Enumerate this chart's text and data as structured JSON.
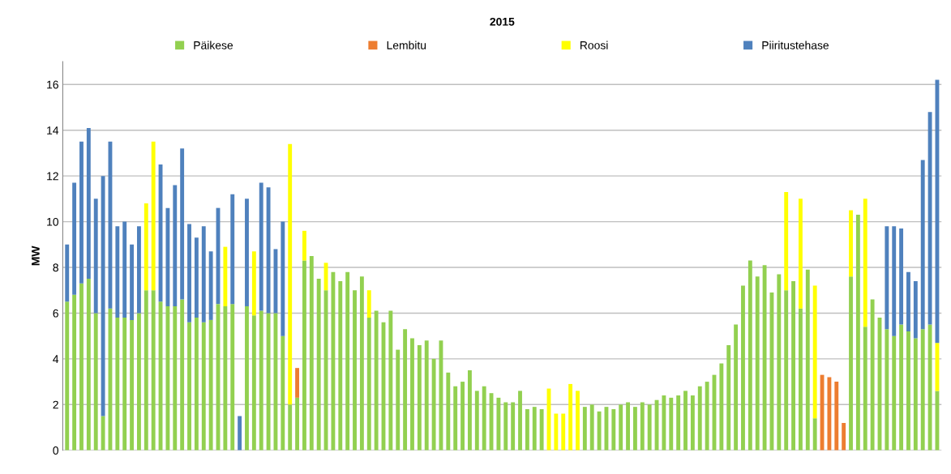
{
  "chart_data": {
    "type": "bar",
    "title": "2015",
    "ylabel": "MW",
    "stacked": true,
    "categories": [
      null,
      null,
      null,
      null,
      null,
      null,
      null,
      null,
      null,
      null,
      null,
      null,
      null,
      null,
      null,
      null,
      null,
      null,
      null,
      null,
      null,
      null,
      null,
      null,
      null,
      null,
      null,
      null,
      null,
      null,
      null,
      null,
      null,
      null,
      null,
      null,
      null,
      null,
      null,
      null,
      null,
      null,
      null,
      null,
      null,
      null,
      null,
      null,
      null,
      null,
      null,
      null,
      null,
      null,
      null,
      null,
      null,
      null,
      null,
      null,
      null,
      null,
      null,
      null,
      null,
      null,
      null,
      null,
      null,
      null,
      null,
      null,
      null,
      null,
      null,
      null,
      null,
      null,
      null,
      null,
      null,
      null,
      null,
      null,
      null,
      null,
      null,
      null,
      null,
      null,
      null,
      null,
      null,
      null,
      null,
      null,
      null,
      null,
      null,
      null,
      null,
      null,
      null,
      null,
      null,
      null,
      null,
      null,
      null,
      null,
      null,
      null,
      null,
      null,
      null,
      null,
      null,
      null,
      null,
      null,
      null,
      null
    ],
    "series": [
      {
        "name": "Päikese",
        "color": "#92d050",
        "values": [
          6.5,
          6.8,
          7.3,
          7.5,
          6.0,
          1.5,
          6.2,
          5.8,
          5.8,
          5.7,
          6.0,
          7.0,
          7.0,
          6.5,
          6.3,
          6.3,
          6.6,
          5.6,
          5.8,
          5.6,
          5.7,
          6.4,
          6.3,
          6.4,
          0,
          6.3,
          5.9,
          6.1,
          6.0,
          6.0,
          5.0,
          2.0,
          2.3,
          8.3,
          8.5,
          7.5,
          7.0,
          7.8,
          7.4,
          7.8,
          7.0,
          7.6,
          5.8,
          6.1,
          5.6,
          6.1,
          4.4,
          5.3,
          4.9,
          4.6,
          4.8,
          4.0,
          4.8,
          3.4,
          2.8,
          3.0,
          3.5,
          2.6,
          2.8,
          2.5,
          2.3,
          2.1,
          2.1,
          2.6,
          1.8,
          1.9,
          1.8,
          0,
          0,
          0,
          0,
          0,
          1.9,
          2.0,
          1.7,
          1.9,
          1.8,
          2.0,
          2.1,
          1.9,
          2.1,
          2.0,
          2.2,
          2.4,
          2.3,
          2.4,
          2.6,
          2.4,
          2.8,
          3.0,
          3.3,
          3.8,
          4.6,
          5.5,
          7.2,
          8.3,
          7.6,
          8.1,
          6.9,
          7.7,
          7.0,
          7.4,
          6.2,
          7.9,
          1.4,
          0,
          0,
          0,
          0,
          7.6,
          10.3,
          5.4,
          6.6,
          5.8,
          5.3,
          5.0,
          5.5,
          5.2,
          4.9,
          5.3,
          5.5,
          2.6
        ]
      },
      {
        "name": "Lembitu",
        "color": "#ed7d31",
        "values": [
          0,
          0,
          0,
          0,
          0,
          0,
          0,
          0,
          0,
          0,
          0,
          0,
          0,
          0,
          0,
          0,
          0,
          0,
          0,
          0,
          0,
          0,
          0,
          0,
          0,
          0,
          0,
          0,
          0,
          0,
          0,
          0,
          1.3,
          0,
          0,
          0,
          0,
          0,
          0,
          0,
          0,
          0,
          0,
          0,
          0,
          0,
          0,
          0,
          0,
          0,
          0,
          0,
          0,
          0,
          0,
          0,
          0,
          0,
          0,
          0,
          0,
          0,
          0,
          0,
          0,
          0,
          0,
          0,
          0,
          0,
          0,
          0,
          0,
          0,
          0,
          0,
          0,
          0,
          0,
          0,
          0,
          0,
          0,
          0,
          0,
          0,
          0,
          0,
          0,
          0,
          0,
          0,
          0,
          0,
          0,
          0,
          0,
          0,
          0,
          0,
          0,
          0,
          0,
          0,
          0,
          3.3,
          3.2,
          3.0,
          1.2,
          0,
          0,
          0,
          0,
          0,
          0,
          0,
          0,
          0,
          0,
          0,
          0,
          0
        ]
      },
      {
        "name": "Roosi",
        "color": "#ffff00",
        "values": [
          0,
          0,
          0,
          0,
          0,
          0,
          0,
          0,
          0,
          0,
          0,
          3.8,
          6.5,
          0,
          0,
          0,
          0,
          0,
          0,
          0,
          0,
          0,
          2.6,
          0,
          0,
          0,
          2.8,
          0,
          0,
          0,
          0,
          11.4,
          0,
          1.3,
          0,
          0,
          1.2,
          0,
          0,
          0,
          0,
          0,
          1.2,
          0,
          0,
          0,
          0,
          0,
          0,
          0,
          0,
          0,
          0,
          0,
          0,
          0,
          0,
          0,
          0,
          0,
          0,
          0,
          0,
          0,
          0,
          0,
          0,
          2.7,
          1.6,
          1.6,
          2.9,
          2.6,
          0,
          0,
          0,
          0,
          0,
          0,
          0,
          0,
          0,
          0,
          0,
          0,
          0,
          0,
          0,
          0,
          0,
          0,
          0,
          0,
          0,
          0,
          0,
          0,
          0,
          0,
          0,
          0,
          4.3,
          0,
          4.8,
          0,
          5.8,
          0,
          0,
          0,
          0,
          2.9,
          0,
          5.6,
          0,
          0,
          0,
          0,
          0,
          0,
          0,
          0,
          0,
          2.1
        ]
      },
      {
        "name": "Piiritustehase",
        "color": "#4f81bd",
        "values": [
          2.5,
          4.9,
          6.2,
          6.6,
          5.0,
          10.5,
          7.3,
          4.0,
          4.2,
          3.3,
          3.8,
          0,
          0,
          6.0,
          4.3,
          5.3,
          6.6,
          4.3,
          3.5,
          4.2,
          3.0,
          4.2,
          0,
          4.8,
          1.5,
          4.7,
          0,
          5.6,
          5.5,
          2.8,
          5.0,
          0,
          0,
          0,
          0,
          0,
          0,
          0,
          0,
          0,
          0,
          0,
          0,
          0,
          0,
          0,
          0,
          0,
          0,
          0,
          0,
          0,
          0,
          0,
          0,
          0,
          0,
          0,
          0,
          0,
          0,
          0,
          0,
          0,
          0,
          0,
          0,
          0,
          0,
          0,
          0,
          0,
          0,
          0,
          0,
          0,
          0,
          0,
          0,
          0,
          0,
          0,
          0,
          0,
          0,
          0,
          0,
          0,
          0,
          0,
          0,
          0,
          0,
          0,
          0,
          0,
          0,
          0,
          0,
          0,
          0,
          0,
          0,
          0,
          0,
          0,
          0,
          0,
          0,
          0,
          0,
          0,
          0,
          0,
          4.5,
          4.8,
          4.2,
          2.6,
          2.5,
          7.4,
          9.3,
          11.5
        ]
      }
    ],
    "ylim": [
      0,
      17
    ],
    "yticks": [
      0,
      2,
      4,
      6,
      8,
      10,
      12,
      14,
      16
    ],
    "grid": "y",
    "legend": "top",
    "tick_labels": "y"
  }
}
